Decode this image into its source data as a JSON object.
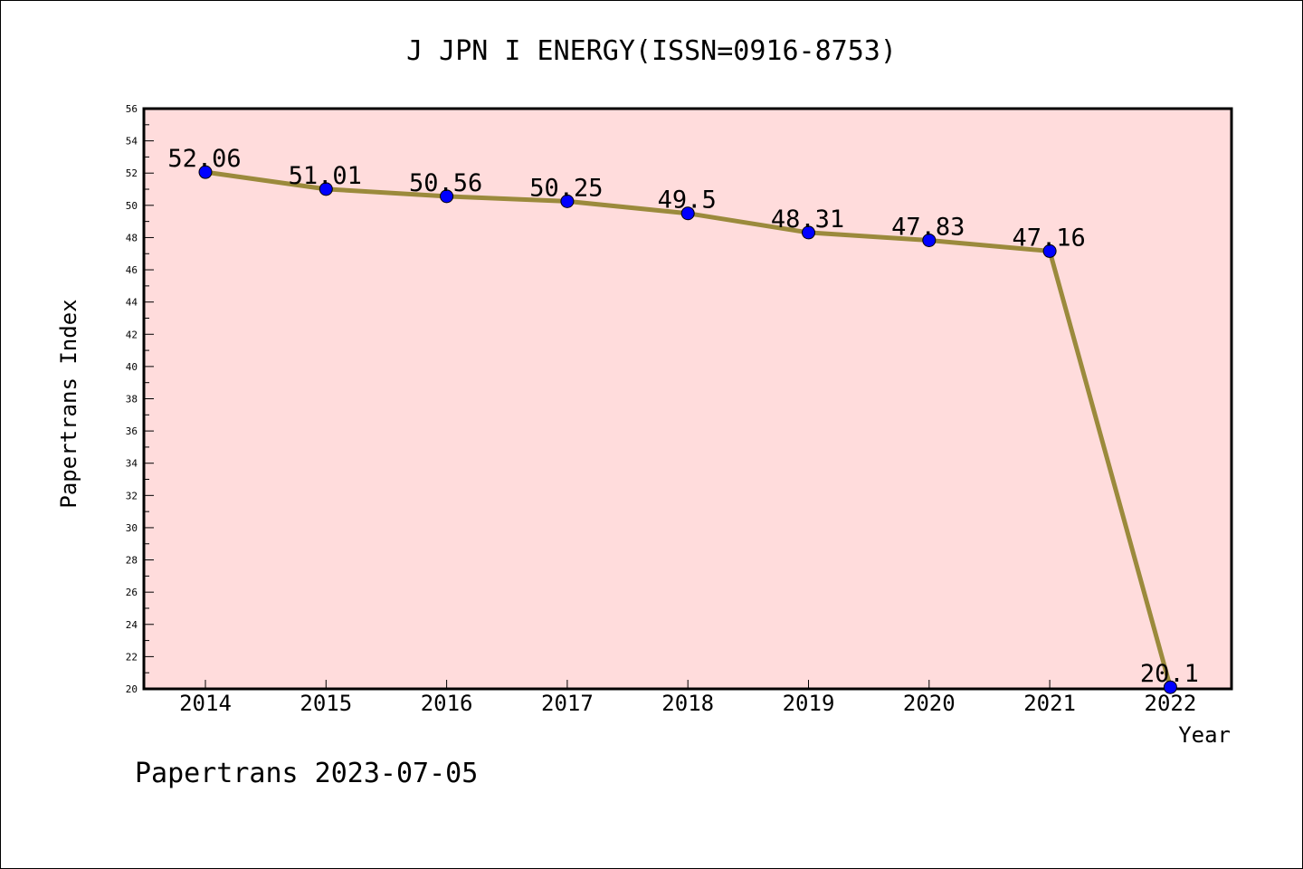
{
  "chart_data": {
    "type": "line",
    "title": "J JPN I ENERGY(ISSN=0916-8753)",
    "xlabel": "Year",
    "ylabel": "Papertrans Index",
    "categories": [
      "2014",
      "2015",
      "2016",
      "2017",
      "2018",
      "2019",
      "2020",
      "2021",
      "2022"
    ],
    "values": [
      52.06,
      51.01,
      50.56,
      50.25,
      49.5,
      48.31,
      47.83,
      47.16,
      20.1
    ],
    "data_labels": [
      "52.06",
      "51.01",
      "50.56",
      "50.25",
      "49.5",
      "48.31",
      "47.83",
      "47.16",
      "20.1"
    ],
    "ylim": [
      20,
      56
    ],
    "yticks": [
      "20",
      "22",
      "24",
      "26",
      "28",
      "30",
      "32",
      "34",
      "36",
      "38",
      "40",
      "42",
      "44",
      "46",
      "48",
      "50",
      "52",
      "54",
      "56"
    ],
    "grid": false,
    "colors": {
      "plot_background": "#FFDCDC",
      "line": "#9B8A3C",
      "marker": "#0000FF"
    }
  },
  "footer": {
    "text": "Papertrans 2023-07-05"
  }
}
